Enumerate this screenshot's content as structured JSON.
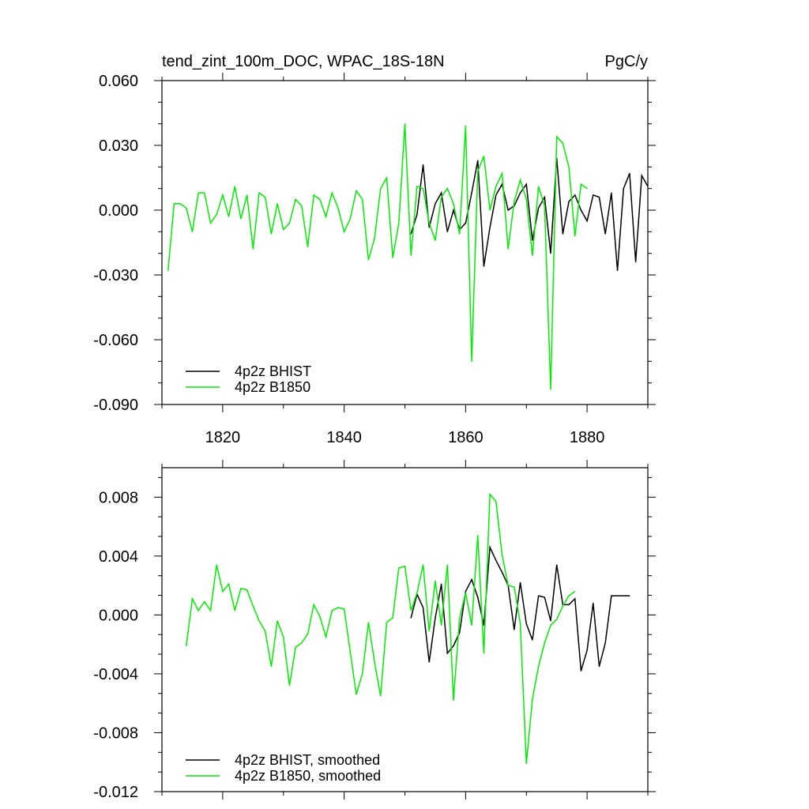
{
  "chart_data": [
    {
      "type": "line",
      "title": "tend_zint_100m_DOC, WPAC_18S-18N",
      "units": "PgC/y",
      "xlabel": "",
      "ylabel": "",
      "xlim": [
        1810,
        1890
      ],
      "ylim": [
        -0.09,
        0.06
      ],
      "xticks": [
        1820,
        1840,
        1860,
        1880
      ],
      "xtick_labels": [
        "1820",
        "1840",
        "1860",
        "1880"
      ],
      "yticks": [
        -0.09,
        -0.06,
        -0.03,
        0.0,
        0.03,
        0.06
      ],
      "ytick_labels": [
        "-0.090",
        "-0.060",
        "-0.030",
        "0.000",
        "0.030",
        "0.060"
      ],
      "legend_position": "bottom-left",
      "series": [
        {
          "name": "4p2z BHIST",
          "color": "#000000",
          "x": [
            1851,
            1852,
            1853,
            1854,
            1855,
            1856,
            1857,
            1858,
            1859,
            1860,
            1861,
            1862,
            1863,
            1864,
            1865,
            1866,
            1867,
            1868,
            1869,
            1870,
            1871,
            1872,
            1873,
            1874,
            1875,
            1876,
            1877,
            1878,
            1879,
            1880,
            1881,
            1882,
            1883,
            1884,
            1885,
            1886,
            1887,
            1888,
            1889,
            1890
          ],
          "y": [
            -0.011,
            -0.002,
            0.021,
            -0.008,
            0.003,
            0.008,
            -0.01,
            0.0,
            -0.009,
            -0.006,
            0.008,
            0.023,
            -0.026,
            -0.008,
            0.007,
            0.012,
            0.0,
            0.002,
            0.008,
            0.012,
            -0.014,
            0.001,
            0.006,
            -0.02,
            0.024,
            -0.011,
            0.004,
            0.007,
            0.0,
            -0.005,
            0.007,
            0.006,
            -0.011,
            0.008,
            -0.028,
            0.01,
            0.017,
            -0.024,
            0.016,
            0.011
          ]
        },
        {
          "name": "4p2z B1850",
          "color": "#00ee00",
          "x": [
            1811,
            1812,
            1813,
            1814,
            1815,
            1816,
            1817,
            1818,
            1819,
            1820,
            1821,
            1822,
            1823,
            1824,
            1825,
            1826,
            1827,
            1828,
            1829,
            1830,
            1831,
            1832,
            1833,
            1834,
            1835,
            1836,
            1837,
            1838,
            1839,
            1840,
            1841,
            1842,
            1843,
            1844,
            1845,
            1846,
            1847,
            1848,
            1849,
            1850,
            1851,
            1852,
            1853,
            1854,
            1855,
            1856,
            1857,
            1858,
            1859,
            1860,
            1861,
            1862,
            1863,
            1864,
            1865,
            1866,
            1867,
            1868,
            1869,
            1870,
            1871,
            1872,
            1873,
            1874,
            1875,
            1876,
            1877,
            1878,
            1879,
            1880
          ],
          "y": [
            -0.028,
            0.003,
            0.003,
            0.001,
            -0.01,
            0.008,
            0.008,
            -0.006,
            -0.002,
            0.007,
            -0.003,
            0.011,
            -0.004,
            0.007,
            -0.018,
            0.008,
            0.006,
            -0.011,
            0.003,
            -0.009,
            -0.006,
            0.005,
            0.002,
            -0.017,
            0.007,
            0.005,
            -0.003,
            0.008,
            0.001,
            -0.01,
            -0.004,
            0.009,
            0.005,
            -0.023,
            -0.013,
            0.01,
            0.015,
            -0.022,
            -0.006,
            0.04,
            -0.021,
            0.011,
            0.01,
            -0.006,
            -0.014,
            0.006,
            0.01,
            0.003,
            -0.011,
            0.039,
            -0.07,
            0.018,
            0.025,
            0.0,
            0.011,
            0.017,
            -0.018,
            0.004,
            0.014,
            0.005,
            -0.021,
            0.011,
            0.002,
            -0.083,
            0.034,
            0.031,
            0.02,
            -0.012,
            0.012,
            0.01
          ]
        }
      ]
    },
    {
      "type": "line",
      "title": "",
      "xlabel": "",
      "ylabel": "",
      "xlim": [
        1810,
        1890
      ],
      "ylim": [
        -0.012,
        0.01
      ],
      "xticks": [
        1820,
        1840,
        1860,
        1880
      ],
      "yticks": [
        -0.012,
        -0.008,
        -0.004,
        0.0,
        0.004,
        0.008
      ],
      "ytick_labels": [
        "-0.012",
        "-0.008",
        "-0.004",
        "0.000",
        "0.004",
        "0.008"
      ],
      "legend_position": "bottom-left",
      "series": [
        {
          "name": "4p2z BHIST, smoothed",
          "color": "#000000",
          "x": [
            1851,
            1852,
            1853,
            1854,
            1855,
            1856,
            1857,
            1858,
            1859,
            1860,
            1861,
            1862,
            1863,
            1864,
            1865,
            1866,
            1867,
            1868,
            1869,
            1870,
            1871,
            1872,
            1873,
            1874,
            1875,
            1876,
            1877,
            1878,
            1879,
            1880,
            1881,
            1882,
            1883,
            1884,
            1885,
            1886,
            1887
          ],
          "y": [
            -0.0002,
            0.0014,
            0.0005,
            -0.0032,
            -0.0002,
            0.0021,
            -0.0026,
            -0.0021,
            -0.0012,
            0.0016,
            0.0024,
            0.0012,
            -0.0007,
            0.0046,
            0.0037,
            0.0029,
            0.002,
            -0.001,
            0.0022,
            -0.0006,
            -0.0017,
            0.0013,
            0.0012,
            -0.0004,
            0.0034,
            0.0007,
            0.0007,
            0.0011,
            -0.0038,
            -0.0024,
            0.0008,
            -0.0035,
            -0.0019,
            0.0013,
            0.0013,
            0.0013,
            0.0013
          ]
        },
        {
          "name": "4p2z B1850, smoothed",
          "color": "#00ee00",
          "x": [
            1814,
            1815,
            1816,
            1817,
            1818,
            1819,
            1820,
            1821,
            1822,
            1823,
            1824,
            1825,
            1826,
            1827,
            1828,
            1829,
            1830,
            1831,
            1832,
            1833,
            1834,
            1835,
            1836,
            1837,
            1838,
            1839,
            1840,
            1841,
            1842,
            1843,
            1844,
            1845,
            1846,
            1847,
            1848,
            1849,
            1850,
            1851,
            1852,
            1853,
            1854,
            1855,
            1856,
            1857,
            1858,
            1859,
            1860,
            1861,
            1862,
            1863,
            1864,
            1865,
            1866,
            1867,
            1868,
            1869,
            1870,
            1871,
            1872,
            1873,
            1874,
            1875,
            1876,
            1877,
            1878
          ],
          "y": [
            -0.0021,
            0.0011,
            0.0003,
            0.0009,
            0.0003,
            0.0034,
            0.0016,
            0.0021,
            0.0003,
            0.0018,
            0.0017,
            0.0006,
            -0.0004,
            -0.0011,
            -0.0035,
            -0.0004,
            -0.0015,
            -0.0048,
            -0.0022,
            -0.0019,
            -0.0013,
            0.0007,
            -0.0001,
            -0.0015,
            0.0003,
            0.0005,
            0.0004,
            -0.0025,
            -0.0054,
            -0.004,
            -0.0005,
            -0.0032,
            -0.0055,
            -0.0005,
            -0.0002,
            0.0032,
            0.0033,
            0.0003,
            0.0015,
            0.0034,
            -0.0011,
            0.0023,
            -0.0007,
            0.0034,
            -0.0058,
            -0.0002,
            0.0015,
            -0.0007,
            0.0054,
            -0.0026,
            0.0082,
            0.0077,
            0.0041,
            0.002,
            0.0019,
            -0.0006,
            -0.0101,
            -0.0057,
            -0.0035,
            -0.0019,
            -0.0007,
            -0.0003,
            0.0006,
            0.0013,
            0.0016
          ]
        }
      ]
    }
  ]
}
